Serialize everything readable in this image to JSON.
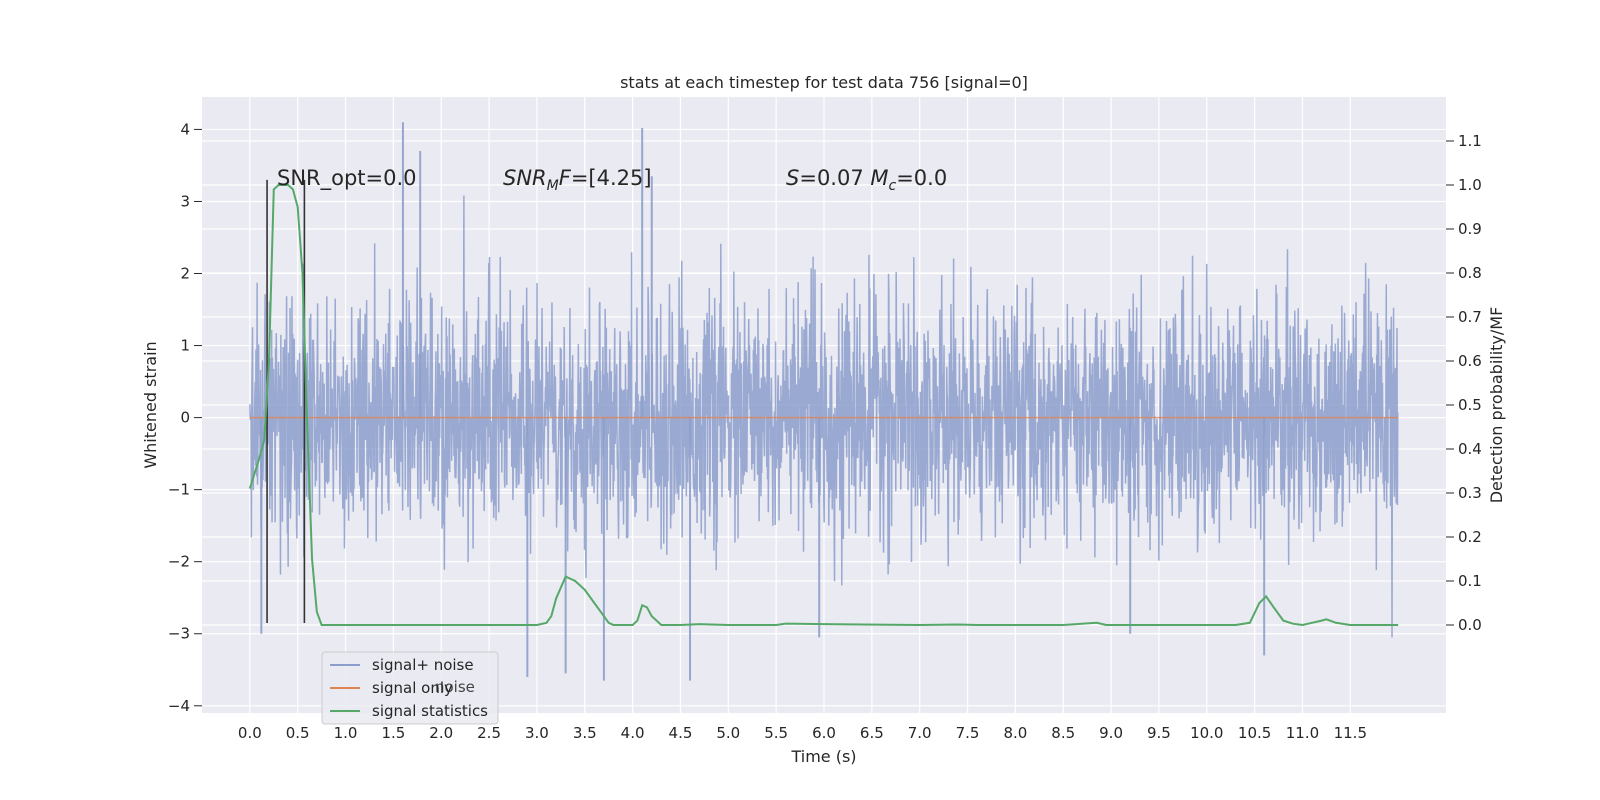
{
  "chart_data": {
    "type": "line",
    "title": "stats at each timestep for test data 756 [signal=0]",
    "xlabel": "Time (s)",
    "ylabel": "Whitened strain",
    "y2label": "Detection probability/MF",
    "xlim": [
      -0.5,
      12.5
    ],
    "ylim": [
      -4.1,
      4.45
    ],
    "y2lim": [
      -0.2,
      1.2
    ],
    "xticks": [
      "0.0",
      "0.5",
      "1.0",
      "1.5",
      "2.0",
      "2.5",
      "3.0",
      "3.5",
      "4.0",
      "4.5",
      "5.0",
      "5.5",
      "6.0",
      "6.5",
      "7.0",
      "7.5",
      "8.0",
      "8.5",
      "9.0",
      "9.5",
      "10.0",
      "10.5",
      "11.0",
      "11.5"
    ],
    "yticks": [
      "4",
      "3",
      "2",
      "1",
      "0",
      "−1",
      "−2",
      "−3",
      "−4"
    ],
    "y2ticks": [
      "1.1",
      "1.0",
      "0.9",
      "0.8",
      "0.7",
      "0.6",
      "0.5",
      "0.4",
      "0.3",
      "0.2",
      "0.1",
      "0.0"
    ],
    "grid": true,
    "legend_position": "lower-left",
    "legend_obscured_text": "noise",
    "series": [
      {
        "name": "signal+ noise",
        "color": "#8c9ecb",
        "axis": "left",
        "x_range": [
          0.0,
          12.0
        ],
        "std": 0.8,
        "min": -3.65,
        "max": 4.1,
        "peaks": [
          {
            "x": 0.12,
            "y": -3.0
          },
          {
            "x": 1.6,
            "y": 4.1
          },
          {
            "x": 1.78,
            "y": 3.7
          },
          {
            "x": 2.9,
            "y": -3.6
          },
          {
            "x": 3.3,
            "y": -3.55
          },
          {
            "x": 3.7,
            "y": -3.65
          },
          {
            "x": 4.1,
            "y": 4.02
          },
          {
            "x": 4.2,
            "y": 3.35
          },
          {
            "x": 4.6,
            "y": -3.65
          },
          {
            "x": 5.95,
            "y": -3.05
          },
          {
            "x": 9.2,
            "y": -3.0
          },
          {
            "x": 10.6,
            "y": -3.3
          }
        ]
      },
      {
        "name": "signal only",
        "color": "#dd8452",
        "axis": "left",
        "x": [
          0.0,
          12.0
        ],
        "y": [
          0.0,
          0.0
        ]
      },
      {
        "name": "signal statistics",
        "color": "#55a868",
        "axis": "right",
        "x": [
          0.0,
          0.1,
          0.15,
          0.2,
          0.25,
          0.3,
          0.4,
          0.45,
          0.5,
          0.55,
          0.6,
          0.65,
          0.7,
          0.75,
          0.8,
          1.0,
          2.0,
          2.9,
          3.0,
          3.1,
          3.15,
          3.2,
          3.3,
          3.4,
          3.5,
          3.6,
          3.7,
          3.75,
          3.8,
          3.9,
          4.0,
          4.05,
          4.1,
          4.15,
          4.2,
          4.3,
          4.5,
          4.7,
          5.0,
          5.5,
          5.6,
          6.0,
          7.0,
          7.4,
          7.6,
          8.0,
          8.5,
          8.85,
          8.95,
          9.5,
          10.0,
          10.3,
          10.45,
          10.55,
          10.62,
          10.7,
          10.8,
          10.9,
          11.0,
          11.1,
          11.2,
          11.25,
          11.35,
          11.5,
          12.0
        ],
        "y": [
          0.31,
          0.38,
          0.42,
          0.6,
          0.99,
          1.0,
          1.0,
          0.99,
          0.95,
          0.8,
          0.45,
          0.15,
          0.03,
          0.0,
          0.0,
          0.0,
          0.0,
          0.0,
          0.0,
          0.005,
          0.02,
          0.06,
          0.11,
          0.1,
          0.08,
          0.05,
          0.02,
          0.005,
          0.0,
          0.0,
          0.0,
          0.01,
          0.045,
          0.04,
          0.02,
          0.0,
          0.0,
          0.002,
          0.0,
          0.0,
          0.003,
          0.002,
          0.0,
          0.001,
          0.0,
          0.0,
          0.0,
          0.005,
          0.0,
          0.0,
          0.0,
          0.0,
          0.005,
          0.05,
          0.065,
          0.04,
          0.01,
          0.003,
          0.0,
          0.005,
          0.01,
          0.013,
          0.005,
          0.0,
          0.0
        ]
      },
      {
        "name": "",
        "color": "#333333",
        "axis": "left",
        "type": "vline",
        "x": [
          0.18,
          0.57
        ],
        "ymin": -2.85,
        "ymax": 3.3
      }
    ],
    "annotations": [
      {
        "text": "SNR_opt=0.0",
        "x": 0.2,
        "y": 3.3
      },
      {
        "text": "SNR_MF=[4.25]",
        "x": 2.6,
        "y": 3.3
      },
      {
        "text": "S=0.07   M_c=0.0",
        "x": 5.6,
        "y": 3.3
      }
    ]
  }
}
